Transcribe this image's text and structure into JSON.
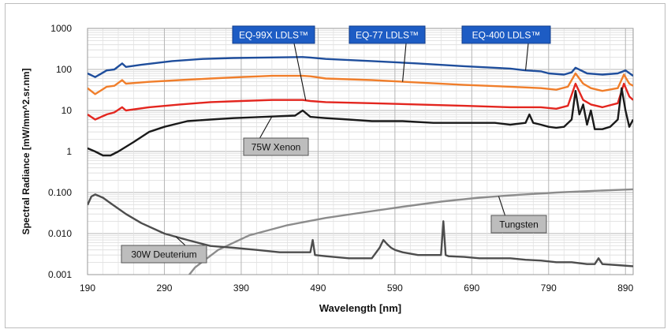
{
  "chart_data": {
    "type": "line",
    "xlabel": "Wavelength [nm]",
    "ylabel": "Spectral Radiance [mW/mm^2.sr.nm]",
    "xlim": [
      190,
      900
    ],
    "ylim": [
      0.001,
      1000
    ],
    "y_scale": "log",
    "grid": true,
    "x_ticks": [
      "190",
      "290",
      "390",
      "490",
      "590",
      "690",
      "790",
      "890"
    ],
    "y_ticks": [
      "0.001",
      "0.010",
      "0.100",
      "1",
      "10",
      "100",
      "1000"
    ],
    "series": [
      {
        "name": "EQ-400 LDLS™",
        "color": "#1f4e9c",
        "x": [
          190,
          200,
          215,
          225,
          235,
          240,
          260,
          300,
          340,
          380,
          420,
          470,
          480,
          500,
          560,
          620,
          680,
          740,
          760,
          780,
          790,
          810,
          820,
          825,
          840,
          860,
          880,
          890,
          900
        ],
        "y": [
          80,
          65,
          95,
          100,
          140,
          115,
          130,
          160,
          180,
          190,
          195,
          200,
          195,
          180,
          160,
          140,
          120,
          105,
          95,
          90,
          80,
          75,
          85,
          110,
          80,
          75,
          80,
          95,
          70
        ]
      },
      {
        "name": "EQ-77 LDLS™",
        "color": "#f07e2b",
        "x": [
          190,
          200,
          215,
          225,
          235,
          240,
          270,
          310,
          350,
          390,
          430,
          470,
          480,
          500,
          560,
          620,
          680,
          740,
          780,
          800,
          815,
          825,
          835,
          845,
          860,
          880,
          888,
          895,
          900
        ],
        "y": [
          35,
          25,
          38,
          40,
          55,
          45,
          50,
          55,
          60,
          65,
          70,
          70,
          68,
          60,
          55,
          48,
          42,
          38,
          35,
          32,
          38,
          80,
          45,
          35,
          30,
          35,
          75,
          45,
          40
        ]
      },
      {
        "name": "EQ-99X LDLS™",
        "color": "#e3261f",
        "x": [
          190,
          200,
          215,
          225,
          235,
          240,
          270,
          310,
          350,
          390,
          430,
          470,
          480,
          500,
          560,
          620,
          680,
          740,
          780,
          800,
          815,
          825,
          835,
          845,
          860,
          880,
          888,
          895,
          900
        ],
        "y": [
          8,
          6,
          8,
          9,
          12,
          10,
          12,
          14,
          16,
          17,
          18,
          18,
          17,
          16,
          15,
          14,
          13,
          12,
          12,
          11,
          13,
          45,
          18,
          14,
          12,
          15,
          45,
          22,
          18
        ]
      },
      {
        "name": "75W Xenon",
        "color": "#1a1a1a",
        "x": [
          190,
          200,
          210,
          220,
          230,
          250,
          270,
          290,
          320,
          350,
          380,
          420,
          460,
          470,
          480,
          500,
          530,
          560,
          600,
          640,
          680,
          720,
          740,
          760,
          765,
          770,
          780,
          790,
          800,
          810,
          820,
          825,
          830,
          835,
          840,
          845,
          850,
          860,
          870,
          880,
          885,
          890,
          895,
          900
        ],
        "y": [
          1.2,
          1.0,
          0.8,
          0.8,
          1.0,
          1.7,
          3,
          4,
          5.5,
          6,
          6.5,
          7,
          7.5,
          10,
          7,
          6.5,
          6,
          5.5,
          5.5,
          5,
          5,
          5,
          4.5,
          5,
          8,
          5,
          4.5,
          4,
          3.8,
          4,
          6,
          30,
          8,
          14,
          4.5,
          10,
          3.5,
          3.5,
          4,
          6,
          35,
          10,
          4,
          6
        ]
      },
      {
        "name": "Tungsten",
        "color": "#8c8c8c",
        "x": [
          300,
          330,
          360,
          400,
          450,
          500,
          550,
          600,
          650,
          700,
          750,
          800,
          850,
          900
        ],
        "y": [
          0.0003,
          0.0015,
          0.004,
          0.009,
          0.016,
          0.024,
          0.033,
          0.045,
          0.06,
          0.075,
          0.088,
          0.1,
          0.11,
          0.12
        ]
      },
      {
        "name": "30W Deuterium",
        "color": "#4d4d4d",
        "x": [
          190,
          195,
          200,
          210,
          220,
          240,
          260,
          290,
          320,
          350,
          380,
          410,
          440,
          470,
          480,
          483,
          486,
          500,
          530,
          560,
          570,
          575,
          580,
          585,
          590,
          600,
          620,
          640,
          650,
          653,
          656,
          660,
          680,
          700,
          720,
          740,
          760,
          780,
          800,
          820,
          840,
          850,
          855,
          860,
          880,
          900
        ],
        "y": [
          0.05,
          0.08,
          0.09,
          0.075,
          0.055,
          0.03,
          0.018,
          0.01,
          0.007,
          0.005,
          0.0045,
          0.004,
          0.0035,
          0.0035,
          0.0035,
          0.007,
          0.003,
          0.0028,
          0.0025,
          0.0025,
          0.0045,
          0.007,
          0.0055,
          0.0045,
          0.004,
          0.0035,
          0.003,
          0.003,
          0.003,
          0.02,
          0.003,
          0.0028,
          0.0027,
          0.0025,
          0.0025,
          0.0025,
          0.0023,
          0.0022,
          0.002,
          0.002,
          0.0018,
          0.0018,
          0.0025,
          0.0018,
          0.0017,
          0.0016
        ]
      }
    ],
    "annotations": [
      {
        "text": "EQ-99X LDLS™",
        "style": "blue-box",
        "target_series": "EQ-99X LDLS™",
        "target_x": 474
      },
      {
        "text": "EQ-77 LDLS™",
        "style": "blue-box",
        "target_series": "EQ-77 LDLS™",
        "target_x": 600
      },
      {
        "text": "EQ-400 LDLS™",
        "style": "blue-box",
        "target_series": "EQ-400 LDLS™",
        "target_x": 760
      },
      {
        "text": "75W Xenon",
        "style": "gray-box",
        "target_series": "75W Xenon",
        "target_x": 430
      },
      {
        "text": "Tungsten",
        "style": "gray-box",
        "target_series": "Tungsten",
        "target_x": 725
      },
      {
        "text": "30W Deuterium",
        "style": "gray-box",
        "target_series": "30W Deuterium",
        "target_x": 305
      }
    ]
  }
}
